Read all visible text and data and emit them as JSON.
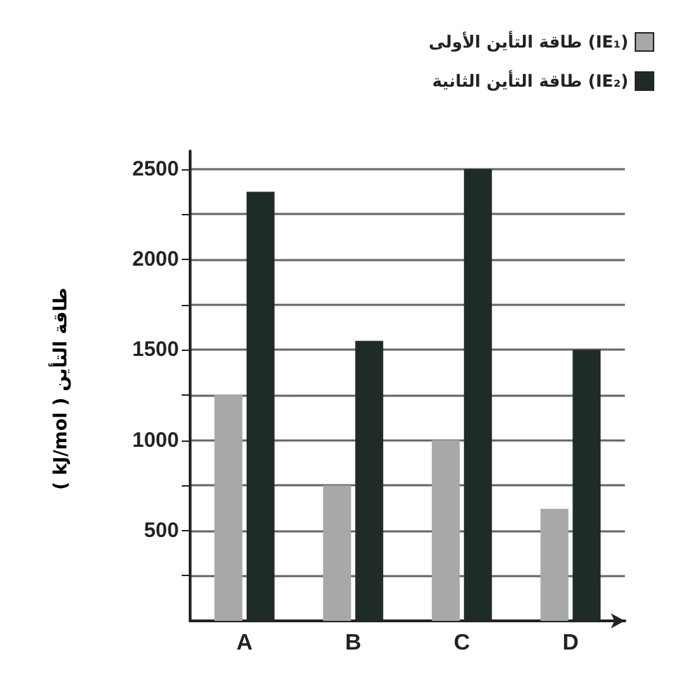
{
  "chart_data": {
    "type": "bar",
    "ylabel": "طاقة التأين ( kJ/mol )",
    "categories": [
      "A",
      "B",
      "C",
      "D"
    ],
    "series": [
      {
        "name": "طاقة التأين الأولى (IE₁)",
        "color": "#a8a8a8",
        "values": [
          1250,
          750,
          1000,
          620
        ]
      },
      {
        "name": "طاقة التأين الثانية (IE₂)",
        "color": "#1f2b25",
        "values": [
          2375,
          1550,
          2500,
          1500
        ]
      }
    ],
    "ylim": [
      0,
      2600
    ],
    "yticks": [
      {
        "value": 250,
        "label": null
      },
      500,
      {
        "value": 750,
        "label": null
      },
      1000,
      {
        "value": 1250,
        "label": null
      },
      1500,
      {
        "value": 1750,
        "label": null
      },
      2000,
      {
        "value": 2250,
        "label": null
      },
      2500
    ],
    "grid": "y",
    "legend": "top right"
  }
}
